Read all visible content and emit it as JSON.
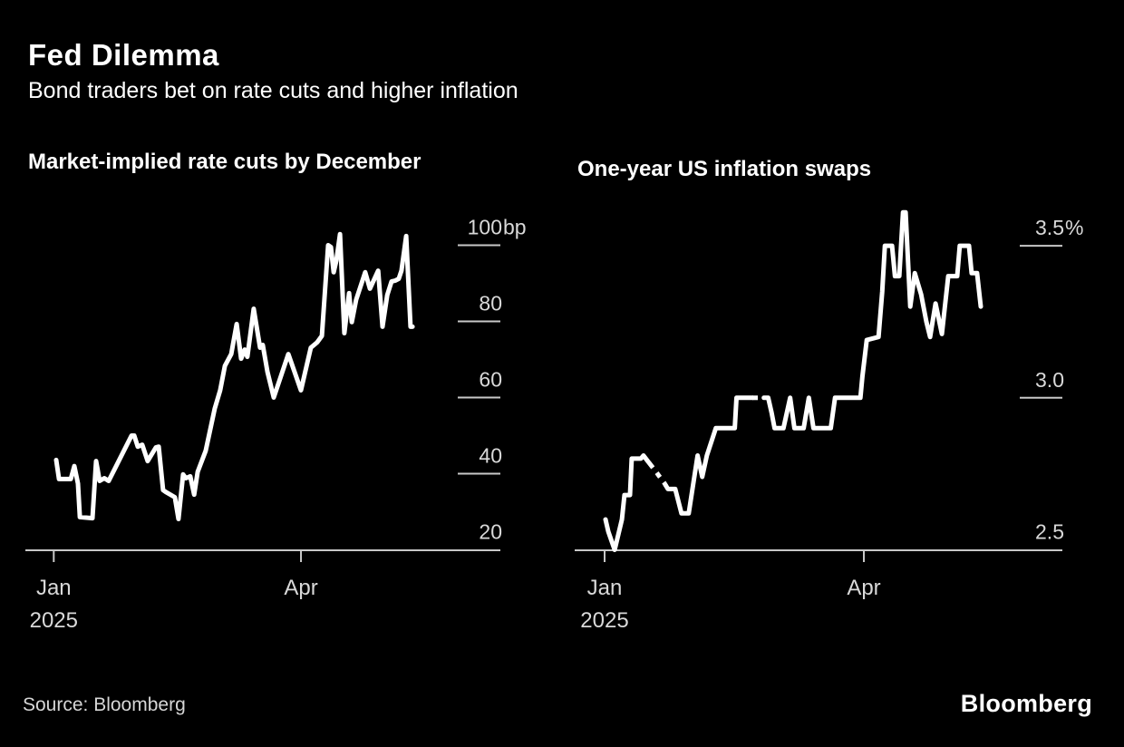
{
  "header": {
    "title": "Fed Dilemma",
    "subtitle": "Bond traders bet on rate cuts and higher inflation"
  },
  "footer": {
    "source": "Source: Bloomberg",
    "logo": "Bloomberg"
  },
  "colors": {
    "background": "#000000",
    "line": "#ffffff",
    "axis": "#c8c8c8",
    "tick_label": "#d9d9d9"
  },
  "chart_data": [
    {
      "type": "line",
      "title": "Market-implied rate cuts by December",
      "unit": "bp",
      "x_start_label": "Jan 2025",
      "x_ticks": [
        {
          "day": 0,
          "label": "Jan",
          "sublabel": "2025"
        },
        {
          "day": 90,
          "label": "Apr"
        }
      ],
      "y_ticks": [
        {
          "value": 100,
          "label": "100",
          "suffix": "bp"
        },
        {
          "value": 80,
          "label": "80"
        },
        {
          "value": 60,
          "label": "60"
        },
        {
          "value": 40,
          "label": "40"
        },
        {
          "value": 20,
          "label": "20"
        }
      ],
      "y_min": 20,
      "y_max_shown": 100,
      "grid": "right-tick-stubs",
      "legend": "none",
      "dashed_day_ranges": [],
      "series": [
        [
          0.9,
          43.6
        ],
        [
          1.9,
          38.6
        ],
        [
          6.2,
          38.6
        ],
        [
          7.5,
          42.0
        ],
        [
          8.8,
          37.4
        ],
        [
          9.5,
          28.6
        ],
        [
          14.1,
          28.3
        ],
        [
          15.4,
          43.3
        ],
        [
          16.7,
          38.1
        ],
        [
          18.4,
          38.8
        ],
        [
          20.0,
          38.1
        ],
        [
          28.3,
          50.0
        ],
        [
          29.3,
          50.0
        ],
        [
          30.6,
          47.1
        ],
        [
          32.2,
          47.6
        ],
        [
          34.2,
          43.3
        ],
        [
          37.2,
          46.9
        ],
        [
          38.2,
          47.1
        ],
        [
          39.8,
          35.7
        ],
        [
          40.8,
          35.2
        ],
        [
          44.1,
          33.8
        ],
        [
          45.4,
          28.1
        ],
        [
          47.1,
          39.8
        ],
        [
          48.1,
          38.8
        ],
        [
          49.7,
          39.3
        ],
        [
          51.1,
          34.5
        ],
        [
          52.4,
          40.5
        ],
        [
          55.3,
          46.0
        ],
        [
          58.6,
          57.1
        ],
        [
          60.6,
          61.9
        ],
        [
          62.3,
          68.3
        ],
        [
          64.6,
          71.4
        ],
        [
          66.6,
          79.3
        ],
        [
          68.2,
          70.2
        ],
        [
          69.5,
          72.6
        ],
        [
          70.5,
          70.7
        ],
        [
          72.8,
          83.3
        ],
        [
          75.1,
          73.1
        ],
        [
          76.1,
          73.8
        ],
        [
          77.8,
          66.7
        ],
        [
          80.1,
          60.0
        ],
        [
          85.4,
          71.4
        ],
        [
          90.0,
          61.9
        ],
        [
          93.6,
          73.1
        ],
        [
          95.9,
          74.5
        ],
        [
          97.6,
          76.2
        ],
        [
          99.9,
          100.0
        ],
        [
          100.9,
          99.5
        ],
        [
          101.9,
          92.9
        ],
        [
          102.9,
          96.0
        ],
        [
          104.2,
          102.9
        ],
        [
          105.8,
          76.9
        ],
        [
          107.5,
          87.4
        ],
        [
          108.5,
          79.8
        ],
        [
          110.1,
          85.7
        ],
        [
          113.4,
          92.9
        ],
        [
          115.1,
          88.6
        ],
        [
          118.1,
          93.3
        ],
        [
          119.7,
          78.6
        ],
        [
          121.4,
          86.9
        ],
        [
          123.0,
          90.5
        ],
        [
          124.3,
          90.7
        ],
        [
          125.6,
          91.2
        ],
        [
          126.6,
          93.3
        ],
        [
          128.3,
          102.4
        ],
        [
          129.9,
          78.6
        ],
        [
          130.6,
          78.6
        ]
      ]
    },
    {
      "type": "line",
      "title": "One-year US inflation swaps",
      "unit": "%",
      "x_start_label": "Jan 2025",
      "x_ticks": [
        {
          "day": 0,
          "label": "Jan",
          "sublabel": "2025"
        },
        {
          "day": 90,
          "label": "Apr"
        }
      ],
      "y_ticks": [
        {
          "value": 3.5,
          "label": "3.5",
          "suffix": "%"
        },
        {
          "value": 3.0,
          "label": "3.0"
        },
        {
          "value": 2.5,
          "label": "2.5"
        }
      ],
      "y_min": 2.5,
      "y_max_shown": 3.5,
      "grid": "right-tick-stubs",
      "legend": "none",
      "dashed_day_ranges": [
        [
          15.6,
          21.3
        ],
        [
          51.3,
          55.3
        ]
      ],
      "series": [
        [
          0.3,
          2.6
        ],
        [
          1.3,
          2.56
        ],
        [
          3.5,
          2.5
        ],
        [
          6.0,
          2.6
        ],
        [
          6.9,
          2.68
        ],
        [
          8.8,
          2.68
        ],
        [
          9.4,
          2.8
        ],
        [
          12.6,
          2.8
        ],
        [
          13.5,
          2.81
        ],
        [
          15.1,
          2.79
        ],
        [
          17.6,
          2.76
        ],
        [
          20.7,
          2.72
        ],
        [
          22.0,
          2.7
        ],
        [
          24.5,
          2.7
        ],
        [
          26.7,
          2.62
        ],
        [
          29.2,
          2.62
        ],
        [
          32.3,
          2.81
        ],
        [
          33.9,
          2.74
        ],
        [
          35.5,
          2.81
        ],
        [
          38.6,
          2.9
        ],
        [
          39.3,
          2.9
        ],
        [
          45.2,
          2.9
        ],
        [
          45.8,
          3.0
        ],
        [
          56.8,
          3.0
        ],
        [
          58.0,
          2.95
        ],
        [
          59.0,
          2.9
        ],
        [
          62.1,
          2.9
        ],
        [
          64.4,
          3.0
        ],
        [
          65.9,
          2.9
        ],
        [
          69.1,
          2.9
        ],
        [
          70.9,
          3.0
        ],
        [
          72.5,
          2.9
        ],
        [
          78.5,
          2.9
        ],
        [
          80.0,
          3.0
        ],
        [
          88.8,
          3.0
        ],
        [
          89.5,
          3.07
        ],
        [
          91.0,
          3.19
        ],
        [
          95.1,
          3.2
        ],
        [
          96.4,
          3.35
        ],
        [
          97.3,
          3.5
        ],
        [
          99.8,
          3.5
        ],
        [
          100.8,
          3.4
        ],
        [
          102.3,
          3.4
        ],
        [
          103.6,
          3.61
        ],
        [
          104.5,
          3.61
        ],
        [
          106.1,
          3.3
        ],
        [
          107.7,
          3.41
        ],
        [
          109.9,
          3.34
        ],
        [
          111.7,
          3.25
        ],
        [
          113.0,
          3.2
        ],
        [
          114.9,
          3.31
        ],
        [
          117.1,
          3.21
        ],
        [
          119.3,
          3.4
        ],
        [
          122.4,
          3.4
        ],
        [
          123.3,
          3.5
        ],
        [
          126.5,
          3.5
        ],
        [
          127.4,
          3.41
        ],
        [
          129.3,
          3.41
        ],
        [
          130.6,
          3.3
        ]
      ]
    }
  ]
}
